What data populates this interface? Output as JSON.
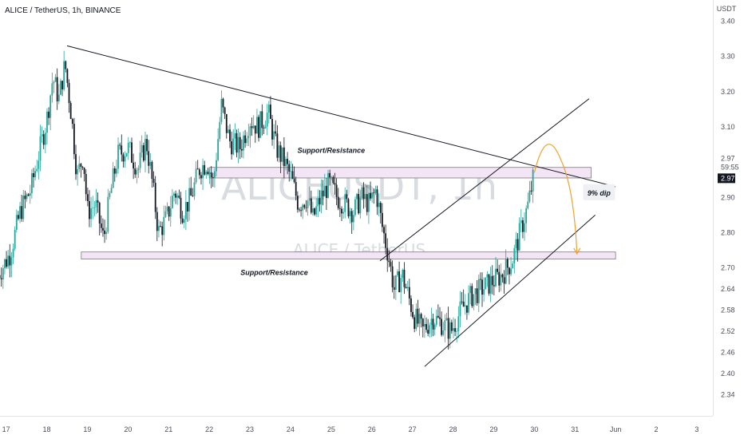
{
  "header": {
    "symbol_title": "ALICE / TetherUS, 1h, BINANCE"
  },
  "watermark": {
    "symbol": "ALICEUSDT, 1h",
    "name": "ALICE / TetherUS"
  },
  "colors": {
    "up": "#26a69a",
    "down": "#131722",
    "zone_fill": "#f3e5f5",
    "zone_stroke": "#7b7b7b",
    "arrow": "#f0a030",
    "price_tag": "#131722"
  },
  "chart_data": {
    "type": "candlestick",
    "ylabel": "USDT",
    "ylim": [
      2.28,
      3.46
    ],
    "y_ticks": [
      "3.40",
      "3.30",
      "3.20",
      "3.10",
      "2.90",
      "2.80",
      "2.70",
      "2.64",
      "2.58",
      "2.52",
      "2.46",
      "2.40",
      "2.34"
    ],
    "price_labels": {
      "last": "2.97",
      "countdown": "59:55",
      "current": "2.97"
    },
    "x_ticks": [
      "17",
      "18",
      "19",
      "20",
      "21",
      "22",
      "23",
      "24",
      "25",
      "26",
      "27",
      "28",
      "29",
      "30",
      "31",
      "Jun",
      "2",
      "3"
    ],
    "zones": [
      {
        "label": "Support/Resistance",
        "day_start": 22.0,
        "day_end": 31.4,
        "price_low": 2.955,
        "price_high": 2.985
      },
      {
        "label": "Support/Resistance",
        "day_start": 18.85,
        "day_end": 32.0,
        "price_low": 2.725,
        "price_high": 2.745
      }
    ],
    "trendlines": [
      {
        "name": "descending-resistance",
        "from": [
          18.5,
          3.33
        ],
        "to": [
          32.0,
          2.93
        ]
      },
      {
        "name": "channel-upper",
        "from": [
          26.2,
          2.72
        ],
        "to": [
          31.35,
          3.18
        ]
      },
      {
        "name": "channel-lower",
        "from": [
          27.3,
          2.42
        ],
        "to": [
          31.5,
          2.85
        ]
      }
    ],
    "projection": {
      "label": "9% dip",
      "from": [
        30.0,
        2.97
      ],
      "peak": [
        30.3,
        3.02
      ],
      "to": [
        31.05,
        2.74
      ]
    },
    "candle_path": [
      [
        16.8,
        2.68
      ],
      [
        17.1,
        2.74
      ],
      [
        17.35,
        2.86
      ],
      [
        17.6,
        2.92
      ],
      [
        17.8,
        3.02
      ],
      [
        18.0,
        3.12
      ],
      [
        18.15,
        3.24
      ],
      [
        18.3,
        3.18
      ],
      [
        18.45,
        3.28
      ],
      [
        18.6,
        3.14
      ],
      [
        18.75,
        2.96
      ],
      [
        18.9,
        3.02
      ],
      [
        19.0,
        2.86
      ],
      [
        19.2,
        2.88
      ],
      [
        19.4,
        2.78
      ],
      [
        19.55,
        2.9
      ],
      [
        19.75,
        3.02
      ],
      [
        20.0,
        3.04
      ],
      [
        20.25,
        2.98
      ],
      [
        20.45,
        3.06
      ],
      [
        20.6,
        2.94
      ],
      [
        20.75,
        2.8
      ],
      [
        20.95,
        2.84
      ],
      [
        21.15,
        2.92
      ],
      [
        21.35,
        2.86
      ],
      [
        21.55,
        2.9
      ],
      [
        21.75,
        2.98
      ],
      [
        21.95,
        3.0
      ],
      [
        22.1,
        2.94
      ],
      [
        22.3,
        3.16
      ],
      [
        22.5,
        3.06
      ],
      [
        22.75,
        3.04
      ],
      [
        23.0,
        3.12
      ],
      [
        23.2,
        3.1
      ],
      [
        23.45,
        3.14
      ],
      [
        23.65,
        3.04
      ],
      [
        23.85,
        3.0
      ],
      [
        24.0,
        2.96
      ],
      [
        24.2,
        2.88
      ],
      [
        24.4,
        2.9
      ],
      [
        24.55,
        2.84
      ],
      [
        24.75,
        2.9
      ],
      [
        24.95,
        2.94
      ],
      [
        25.15,
        2.9
      ],
      [
        25.35,
        2.88
      ],
      [
        25.55,
        2.86
      ],
      [
        25.75,
        2.9
      ],
      [
        25.95,
        2.88
      ],
      [
        26.1,
        2.92
      ],
      [
        26.25,
        2.82
      ],
      [
        26.4,
        2.74
      ],
      [
        26.55,
        2.64
      ],
      [
        26.75,
        2.68
      ],
      [
        26.9,
        2.62
      ],
      [
        27.05,
        2.56
      ],
      [
        27.25,
        2.52
      ],
      [
        27.5,
        2.56
      ],
      [
        27.75,
        2.54
      ],
      [
        27.95,
        2.52
      ],
      [
        28.2,
        2.58
      ],
      [
        28.45,
        2.62
      ],
      [
        28.7,
        2.64
      ],
      [
        28.95,
        2.66
      ],
      [
        29.2,
        2.68
      ],
      [
        29.45,
        2.72
      ],
      [
        29.65,
        2.8
      ],
      [
        29.85,
        2.88
      ],
      [
        30.0,
        2.97
      ]
    ]
  }
}
